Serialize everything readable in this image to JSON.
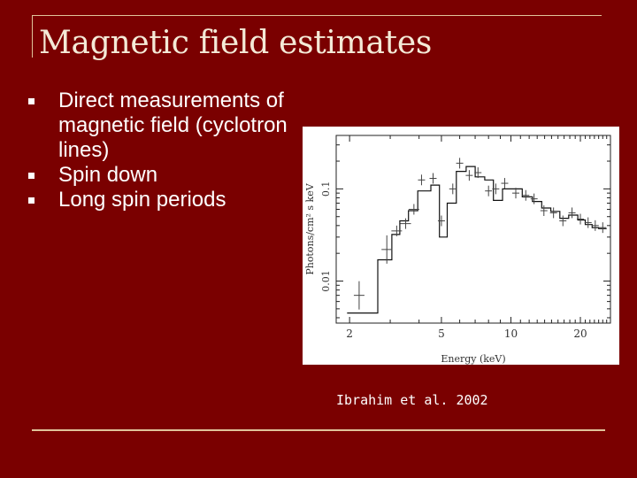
{
  "slide": {
    "title": "Magnetic field estimates",
    "bullets": [
      "Direct measurements of magnetic field (cyclotron lines)",
      "Spin down",
      "Long spin periods"
    ],
    "caption": "Ibrahim et al. 2002",
    "colors": {
      "background": "#7a0000",
      "rule": "#e0c39a",
      "text": "#ffffff"
    }
  },
  "chart_data": {
    "type": "line",
    "xscale": "log",
    "yscale": "log",
    "xlabel": "Energy (keV)",
    "ylabel": "Photons/cm² s keV",
    "xticks": [
      2,
      5,
      10,
      20
    ],
    "xtick_labels": [
      "2",
      "5",
      "10",
      "20"
    ],
    "yticks": [
      0.01,
      0.1
    ],
    "ytick_labels": [
      "0.01",
      "0.1"
    ],
    "xlim": [
      1.75,
      27
    ],
    "ylim": [
      0.0035,
      0.38
    ],
    "series": [
      {
        "style": "step",
        "x": [
          1.95,
          2.55,
          2.65,
          3.05,
          3.3,
          3.6,
          3.95,
          4.5,
          4.9,
          5.3,
          5.8,
          6.4,
          7.0,
          7.7,
          8.4,
          9.2,
          10.1,
          11.2,
          12.4,
          13.6,
          14.9,
          16.3,
          17.8,
          19.5,
          21.0,
          22.5,
          24.0,
          26.0
        ],
        "y": [
          0.0045,
          0.0045,
          0.017,
          0.032,
          0.045,
          0.058,
          0.095,
          0.11,
          0.03,
          0.07,
          0.155,
          0.175,
          0.135,
          0.125,
          0.075,
          0.1,
          0.1,
          0.082,
          0.073,
          0.062,
          0.057,
          0.048,
          0.052,
          0.046,
          0.041,
          0.038,
          0.037,
          0.037
        ]
      },
      {
        "style": "errorbar",
        "x": [
          2.2,
          2.9,
          3.2,
          3.5,
          3.8,
          4.1,
          4.6,
          5.0,
          5.6,
          6.0,
          6.6,
          7.2,
          8.0,
          8.6,
          9.4,
          10.5,
          11.6,
          12.6,
          13.9,
          15.3,
          16.8,
          18.4,
          20.0,
          21.6,
          23.2,
          25.0
        ],
        "y": [
          0.007,
          0.022,
          0.035,
          0.042,
          0.06,
          0.125,
          0.13,
          0.045,
          0.1,
          0.19,
          0.14,
          0.15,
          0.095,
          0.1,
          0.115,
          0.09,
          0.085,
          0.078,
          0.058,
          0.055,
          0.045,
          0.055,
          0.047,
          0.043,
          0.04,
          0.038
        ]
      }
    ]
  }
}
